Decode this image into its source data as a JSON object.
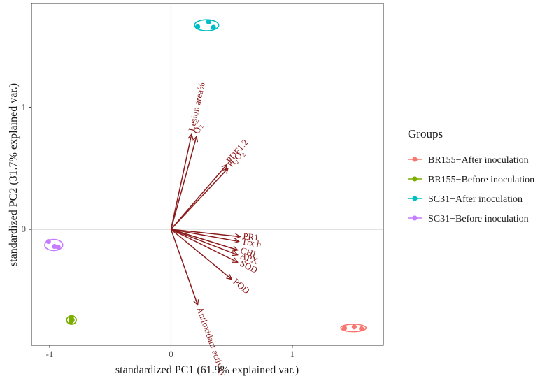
{
  "chart_data": {
    "type": "scatter",
    "subtype": "pca-biplot",
    "xlabel": "standardized PC1 (61.9% explained var.)",
    "ylabel": "standardized PC2 (31.7% explained var.)",
    "xlim": [
      -1.15,
      1.75
    ],
    "ylim": [
      -0.95,
      1.85
    ],
    "x_ticks": [
      -1,
      0,
      1
    ],
    "y_ticks": [
      0,
      1
    ],
    "reference_lines": {
      "x": 0,
      "y": 0
    },
    "grid": false,
    "legend": {
      "title": "Groups",
      "placement": "right",
      "entries": [
        {
          "name": "BR155−After inoculation",
          "color": "#F8766D"
        },
        {
          "name": "BR155−Before inoculation",
          "color": "#7CAE00"
        },
        {
          "name": "SC31−After inoculation",
          "color": "#00BFC4"
        },
        {
          "name": "SC31−Before inoculation",
          "color": "#C77CFF"
        }
      ]
    },
    "series": [
      {
        "name": "BR155−After inoculation",
        "color": "#F8766D",
        "points": [
          [
            1.43,
            -0.81
          ],
          [
            1.51,
            -0.8
          ],
          [
            1.57,
            -0.815
          ]
        ]
      },
      {
        "name": "BR155−Before inoculation",
        "color": "#7CAE00",
        "points": [
          [
            -0.82,
            -0.73
          ],
          [
            -0.815,
            -0.745
          ],
          [
            -0.825,
            -0.755
          ]
        ]
      },
      {
        "name": "SC31−After inoculation",
        "color": "#00BFC4",
        "points": [
          [
            0.22,
            1.66
          ],
          [
            0.31,
            1.7
          ],
          [
            0.35,
            1.655
          ]
        ]
      },
      {
        "name": "SC31−Before inoculation",
        "color": "#C77CFF",
        "points": [
          [
            -1.01,
            -0.1
          ],
          [
            -0.96,
            -0.14
          ],
          [
            -0.93,
            -0.145
          ]
        ]
      }
    ],
    "loadings": [
      {
        "label": "Lesion area%",
        "x": 0.17,
        "y": 0.78
      },
      {
        "label": "O₂⁻",
        "x": 0.21,
        "y": 0.76
      },
      {
        "label": "PDF1.2",
        "x": 0.46,
        "y": 0.53
      },
      {
        "label": "H₂O₂",
        "x": 0.47,
        "y": 0.5
      },
      {
        "label": "PR1",
        "x": 0.57,
        "y": -0.06
      },
      {
        "label": "Trx h",
        "x": 0.56,
        "y": -0.1
      },
      {
        "label": "CHI",
        "x": 0.55,
        "y": -0.17
      },
      {
        "label": "APX",
        "x": 0.55,
        "y": -0.21
      },
      {
        "label": "SOD",
        "x": 0.55,
        "y": -0.27
      },
      {
        "label": "POD",
        "x": 0.5,
        "y": -0.41
      },
      {
        "label": "Antioxidant activity",
        "x": 0.22,
        "y": -0.62
      }
    ]
  }
}
